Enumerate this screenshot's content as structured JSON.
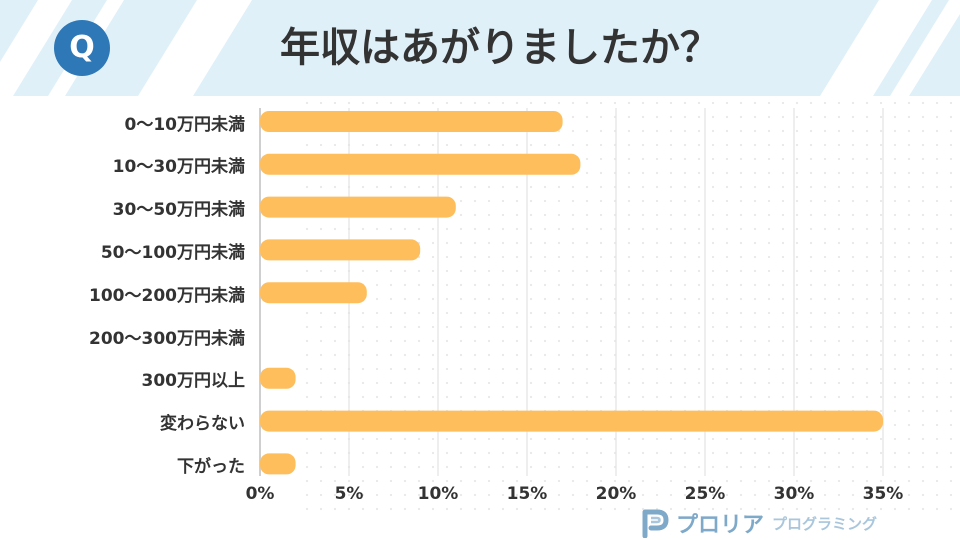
{
  "header": {
    "badge": "Q",
    "title": "年収はあがりましたか？"
  },
  "chart_data": {
    "type": "bar",
    "orientation": "horizontal",
    "title": "年収はあがりましたか？",
    "categories": [
      "0～10万円未満",
      "10～30万円未満",
      "30～50万円未満",
      "50～100万円未満",
      "100～200万円未満",
      "200～300万円未満",
      "300万円以上",
      "変わらない",
      "下がった"
    ],
    "values": [
      17,
      18,
      11,
      9,
      6,
      0,
      2,
      35,
      2
    ],
    "xlabel": "",
    "ylabel": "",
    "xlim": [
      0,
      35
    ],
    "ticks": [
      "0%",
      "5%",
      "10%",
      "15%",
      "20%",
      "25%",
      "30%",
      "35%"
    ],
    "unit": "%",
    "grid": true,
    "bar_color": "#ffbe5c",
    "grid_color": "#e3e3e3"
  },
  "brand": {
    "name": "プロリア",
    "sub": "プログラミング"
  },
  "colors": {
    "header_bg": "#dff0f9",
    "stripe": "#ffffff",
    "badge_bg": "#2e78b7",
    "text": "#333333",
    "brand": "#7fa9c9"
  }
}
